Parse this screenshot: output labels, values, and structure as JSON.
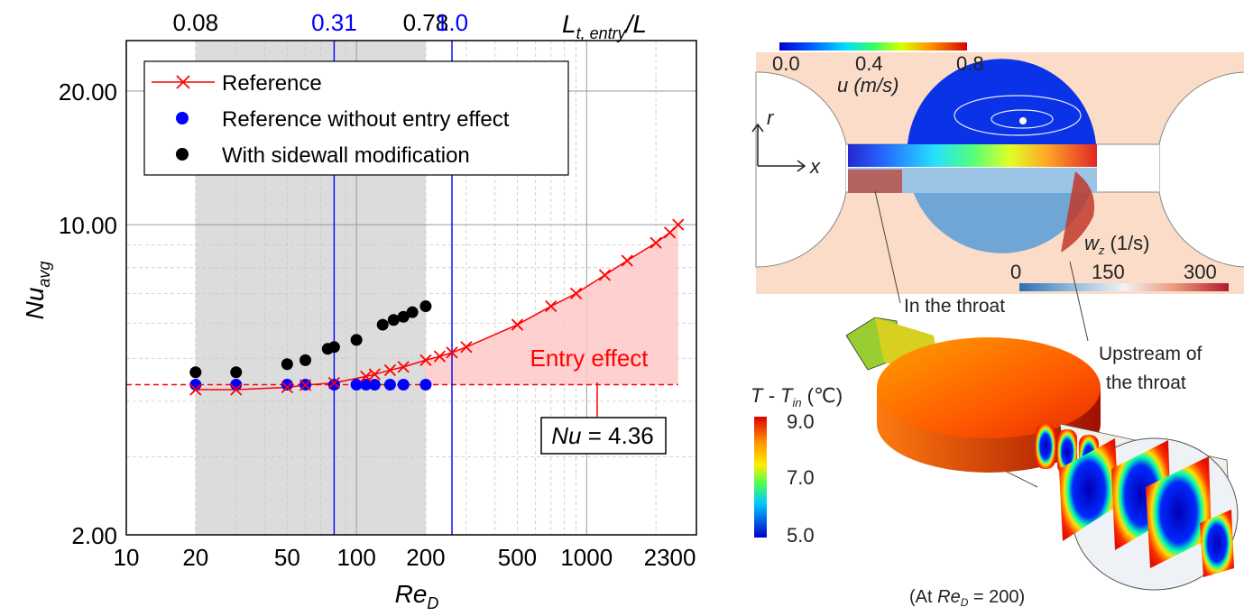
{
  "chart_data": {
    "type": "scatter",
    "xlabel": "Re",
    "xlabel_sub": "D",
    "ylabel": "Nu",
    "ylabel_sub": "avg",
    "x_scale": "log",
    "y_scale": "log",
    "xlim": [
      10,
      3000
    ],
    "ylim": [
      2,
      26
    ],
    "x_ticks": [
      10,
      20,
      50,
      100,
      200,
      500,
      1000,
      2300
    ],
    "x_tick_labels": [
      "10",
      "20",
      "50",
      "100",
      "200",
      "500",
      "1000",
      "2300"
    ],
    "y_ticks": [
      2,
      10,
      20
    ],
    "y_tick_labels": [
      "2.00",
      "10.00",
      "20.00"
    ],
    "top_axis": {
      "label": "L",
      "label_sub": "t, entry",
      "label_suffix": "/L",
      "ticks": [
        {
          "text": "0.08",
          "at_re": 20,
          "color": "#000000"
        },
        {
          "text": "0.31",
          "at_re": 80,
          "color": "#0000ff"
        },
        {
          "text": "0.78",
          "at_re": 200,
          "color": "#000000"
        },
        {
          "text": "1.0",
          "at_re": 260,
          "color": "#0000ff"
        }
      ]
    },
    "shaded_range_re": [
      20,
      200
    ],
    "vertical_lines_re": [
      80,
      260
    ],
    "nu_constant": 4.36,
    "nu_annotation_prefix": "Nu",
    "nu_annotation_suffix": " = 4.36",
    "entry_effect_label": "Entry effect",
    "grid": true,
    "legend_position": "top-left",
    "colors": {
      "reference": "#ff0000",
      "fill": "#ffc8c8",
      "shade": "#dcdcdc",
      "blue": "#0000ff",
      "black": "#000000"
    },
    "series": [
      {
        "name": "Reference",
        "marker": "x",
        "color": "#ff0000",
        "line": true,
        "x": [
          20,
          30,
          50,
          60,
          80,
          110,
          120,
          140,
          160,
          200,
          230,
          260,
          300,
          500,
          700,
          900,
          1200,
          1500,
          2000,
          2300,
          2500
        ],
        "y": [
          4.25,
          4.25,
          4.3,
          4.35,
          4.4,
          4.55,
          4.6,
          4.7,
          4.78,
          4.95,
          5.05,
          5.15,
          5.3,
          5.95,
          6.55,
          7.0,
          7.7,
          8.3,
          9.1,
          9.6,
          10.0
        ]
      },
      {
        "name": "Reference without entry effect",
        "marker": "circle",
        "color": "#0000ff",
        "line": false,
        "x": [
          20,
          30,
          50,
          60,
          80,
          100,
          110,
          120,
          140,
          160,
          200
        ],
        "y": [
          4.36,
          4.36,
          4.36,
          4.36,
          4.36,
          4.36,
          4.36,
          4.36,
          4.36,
          4.36,
          4.36
        ]
      },
      {
        "name": "With sidewall modification",
        "marker": "circle",
        "color": "#000000",
        "line": false,
        "x": [
          20,
          30,
          50,
          60,
          75,
          80,
          100,
          130,
          145,
          160,
          175,
          200
        ],
        "y": [
          4.65,
          4.65,
          4.85,
          4.95,
          5.25,
          5.3,
          5.5,
          5.95,
          6.1,
          6.2,
          6.35,
          6.55
        ]
      }
    ]
  },
  "figure": {
    "u_colorbar": {
      "ticks": [
        "0.0",
        "0.4",
        "0.8"
      ],
      "label": "u (m/s)"
    },
    "axes_r": "r",
    "axes_x": "x",
    "wz_label": "w",
    "wz_sub": "z",
    "wz_units": " (1/s)",
    "wz_colorbar": {
      "ticks": [
        "0",
        "150",
        "300"
      ]
    },
    "callout_throat": "In the throat",
    "callout_upstream_1": "Upstream of",
    "callout_upstream_2": "the throat",
    "temp_label": "T - T",
    "temp_sub": "in",
    "temp_units": " (℃)",
    "temp_ticks": [
      "9.0",
      "7.0",
      "5.0"
    ],
    "caption_prefix": "(At ",
    "caption_var": "Re",
    "caption_sub": "D",
    "caption_suffix": " = 200)"
  }
}
